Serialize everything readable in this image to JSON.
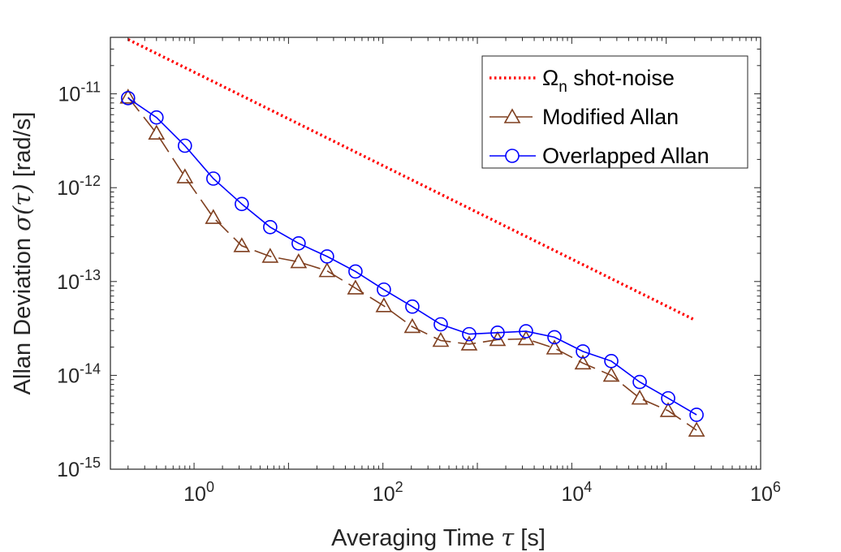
{
  "chart_data": {
    "type": "line",
    "x_scale": "log",
    "y_scale": "log",
    "xlim": [
      0.13,
      1000000
    ],
    "ylim": [
      1e-15,
      4e-11
    ],
    "xlabel": {
      "prefix": "Averaging Time ",
      "symbol": "τ",
      "unit": "  [s]"
    },
    "ylabel": {
      "prefix": "Allan Deviation ",
      "symbol": "σ(τ)",
      "unit": "  [rad/s]"
    },
    "x_ticks": [
      {
        "value": 1,
        "base": "10",
        "exp": "0"
      },
      {
        "value": 100,
        "base": "10",
        "exp": "2"
      },
      {
        "value": 10000,
        "base": "10",
        "exp": "4"
      },
      {
        "value": 1000000,
        "base": "10",
        "exp": "6"
      }
    ],
    "y_ticks": [
      {
        "value": 1e-15,
        "base": "10",
        "exp": "-15"
      },
      {
        "value": 1e-14,
        "base": "10",
        "exp": "-14"
      },
      {
        "value": 1e-13,
        "base": "10",
        "exp": "-13"
      },
      {
        "value": 1e-12,
        "base": "10",
        "exp": "-12"
      },
      {
        "value": 1e-11,
        "base": "10",
        "exp": "-11"
      }
    ],
    "legend_position": "top-right",
    "series": [
      {
        "name": "Ω_n shot-noise",
        "label_symbol": "Ω",
        "label_sub": "n",
        "label_text": " shot-noise",
        "color": "#ff0000",
        "line_style": "dotted",
        "marker": "none",
        "x": [
          0.2,
          200000
        ],
        "y": [
          3.8e-11,
          3.9e-14
        ]
      },
      {
        "name": "Modified Allan",
        "label_text": "Modified Allan",
        "color": "#7f3f1f",
        "line_style": "dashed",
        "marker": "triangle",
        "x": [
          0.2,
          0.4,
          0.8,
          1.6,
          3.2,
          6.4,
          12.8,
          25.6,
          51.2,
          102.4,
          204.8,
          409.6,
          819.2,
          1638,
          3277,
          6554,
          13107,
          26214,
          52429,
          104858,
          209715
        ],
        "y": [
          9.2e-12,
          3.8e-12,
          1.3e-12,
          4.8e-13,
          2.4e-13,
          1.85e-13,
          1.62e-13,
          1.3e-13,
          8.5e-14,
          5.5e-14,
          3.3e-14,
          2.35e-14,
          2.15e-14,
          2.4e-14,
          2.45e-14,
          1.95e-14,
          1.35e-14,
          1e-14,
          5.7e-15,
          4.2e-15,
          2.6e-15
        ]
      },
      {
        "name": "Overlapped Allan",
        "label_text": "Overlapped Allan",
        "color": "#0000ff",
        "line_style": "solid",
        "marker": "circle",
        "x": [
          0.2,
          0.4,
          0.8,
          1.6,
          3.2,
          6.4,
          12.8,
          25.6,
          51.2,
          102.4,
          204.8,
          409.6,
          819.2,
          1638,
          3277,
          6554,
          13107,
          26214,
          52429,
          104858,
          209715
        ],
        "y": [
          9e-12,
          5.6e-12,
          2.8e-12,
          1.25e-12,
          6.7e-13,
          3.8e-13,
          2.55e-13,
          1.85e-13,
          1.28e-13,
          8.2e-14,
          5.4e-14,
          3.5e-14,
          2.75e-14,
          2.85e-14,
          2.95e-14,
          2.55e-14,
          1.8e-14,
          1.42e-14,
          8.5e-15,
          5.7e-15,
          3.8e-15
        ]
      }
    ]
  }
}
